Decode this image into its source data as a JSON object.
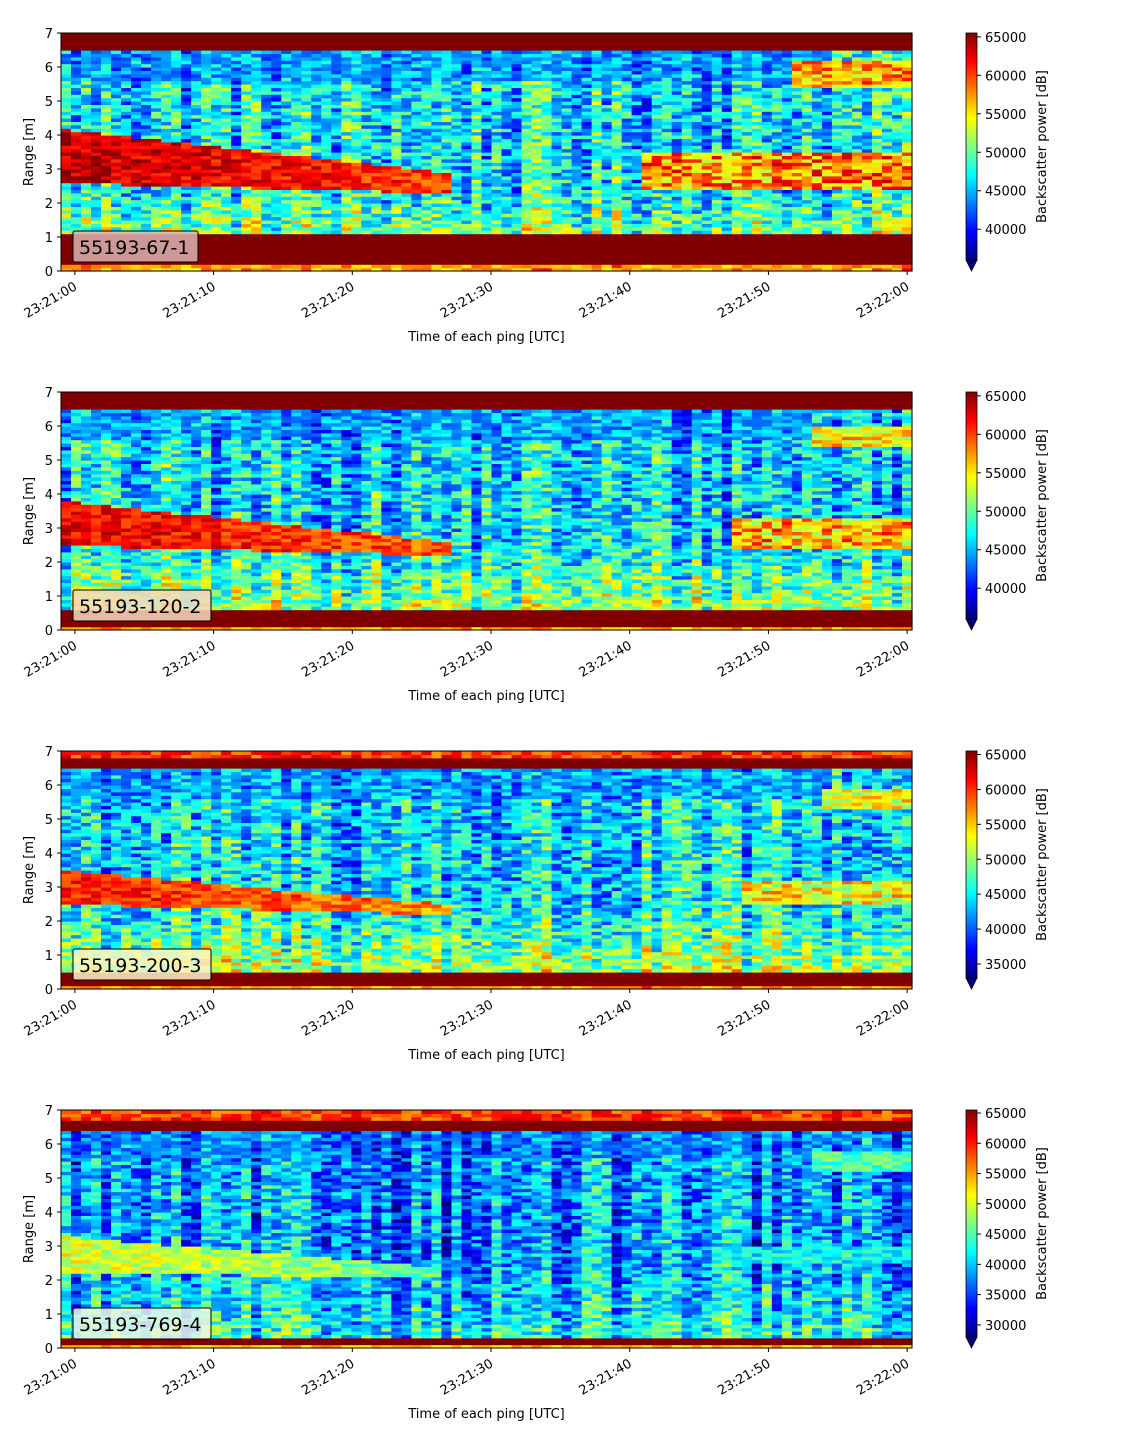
{
  "chart_data": [
    {
      "type": "heatmap",
      "panel_label": "55193-67-1",
      "xlabel": "Time of each ping [UTC]",
      "ylabel": "Range [m]",
      "colorbar_label": "Backscatter power [dB]",
      "colormap": "jet",
      "xlim": [
        "23:21:00",
        "23:22:00"
      ],
      "ylim": [
        0,
        7
      ],
      "x_ticks": [
        "23:21:00",
        "23:21:10",
        "23:21:20",
        "23:21:30",
        "23:21:40",
        "23:21:50",
        "23:22:00"
      ],
      "y_ticks": [
        0,
        1,
        2,
        3,
        4,
        5,
        6,
        7
      ],
      "clim": [
        36000,
        65500
      ],
      "colorbar_ticks": [
        40000,
        45000,
        50000,
        55000,
        60000,
        65000
      ],
      "colorbar_extend": "min",
      "label_box_color": "#dcb3b3",
      "features": {
        "bottom_band_range": [
          0.2,
          1.15
        ],
        "top_band_range": [
          6.55,
          7.0
        ],
        "dense_layer": {
          "start_range": [
            2.6,
            4.2
          ],
          "end_range": [
            2.3,
            2.9
          ],
          "ends_at": "23:21:27",
          "intensity": 0.94
        },
        "late_layer": {
          "starts_at": "23:21:41",
          "range": [
            2.4,
            3.5
          ],
          "intensity": 0.85
        },
        "surface_layer": {
          "starts_at": "23:21:52",
          "range": [
            5.4,
            6.2
          ],
          "intensity": 0.8
        }
      }
    },
    {
      "type": "heatmap",
      "panel_label": "55193-120-2",
      "xlabel": "Time of each ping [UTC]",
      "ylabel": "Range [m]",
      "colorbar_label": "Backscatter power [dB]",
      "colormap": "jet",
      "xlim": [
        "23:21:00",
        "23:22:00"
      ],
      "ylim": [
        0,
        7
      ],
      "x_ticks": [
        "23:21:00",
        "23:21:10",
        "23:21:20",
        "23:21:30",
        "23:21:40",
        "23:21:50",
        "23:22:00"
      ],
      "y_ticks": [
        0,
        1,
        2,
        3,
        4,
        5,
        6,
        7
      ],
      "clim": [
        36000,
        65500
      ],
      "colorbar_ticks": [
        40000,
        45000,
        50000,
        55000,
        60000,
        65000
      ],
      "colorbar_extend": "min",
      "label_box_color": "#f7d9be",
      "features": {
        "bottom_band_range": [
          0.1,
          0.55
        ],
        "top_band_range": [
          6.5,
          6.95
        ],
        "dense_layer": {
          "start_range": [
            2.5,
            3.8
          ],
          "end_range": [
            2.2,
            2.6
          ],
          "ends_at": "23:21:27",
          "intensity": 0.9
        },
        "late_layer": {
          "starts_at": "23:21:47",
          "range": [
            2.4,
            3.3
          ],
          "intensity": 0.8
        },
        "surface_layer": {
          "starts_at": "23:21:53",
          "range": [
            5.4,
            6.0
          ],
          "intensity": 0.72
        }
      }
    },
    {
      "type": "heatmap",
      "panel_label": "55193-200-3",
      "xlabel": "Time of each ping [UTC]",
      "ylabel": "Range [m]",
      "colorbar_label": "Backscatter power [dB]",
      "colormap": "jet",
      "xlim": [
        "23:21:00",
        "23:22:00"
      ],
      "ylim": [
        0,
        7
      ],
      "x_ticks": [
        "23:21:00",
        "23:21:10",
        "23:21:20",
        "23:21:30",
        "23:21:40",
        "23:21:50",
        "23:22:00"
      ],
      "y_ticks": [
        0,
        1,
        2,
        3,
        4,
        5,
        6,
        7
      ],
      "clim": [
        33000,
        65500
      ],
      "colorbar_ticks": [
        35000,
        40000,
        45000,
        50000,
        55000,
        60000,
        65000
      ],
      "colorbar_extend": "min",
      "label_box_color": "#fbf4c6",
      "features": {
        "bottom_band_range": [
          0.15,
          0.5
        ],
        "top_band_range": [
          6.5,
          6.8
        ],
        "dense_layer": {
          "start_range": [
            2.5,
            3.5
          ],
          "end_range": [
            2.2,
            2.5
          ],
          "ends_at": "23:21:27",
          "intensity": 0.86
        },
        "late_layer": {
          "starts_at": "23:21:48",
          "range": [
            2.5,
            3.2
          ],
          "intensity": 0.72
        },
        "surface_layer": {
          "starts_at": "23:21:54",
          "range": [
            5.3,
            5.9
          ],
          "intensity": 0.68
        }
      }
    },
    {
      "type": "heatmap",
      "panel_label": "55193-769-4",
      "xlabel": "Time of each ping [UTC]",
      "ylabel": "Range [m]",
      "colorbar_label": "Backscatter power [dB]",
      "colormap": "jet",
      "xlim": [
        "23:21:00",
        "23:22:00"
      ],
      "ylim": [
        0,
        7
      ],
      "x_ticks": [
        "23:21:00",
        "23:21:10",
        "23:21:20",
        "23:21:30",
        "23:21:40",
        "23:21:50",
        "23:22:00"
      ],
      "y_ticks": [
        0,
        1,
        2,
        3,
        4,
        5,
        6,
        7
      ],
      "clim": [
        28000,
        65500
      ],
      "colorbar_ticks": [
        30000,
        35000,
        40000,
        45000,
        50000,
        55000,
        60000,
        65000
      ],
      "colorbar_extend": "min",
      "label_box_color": "#ecf7e4",
      "features": {
        "bottom_band_range": [
          0.15,
          0.35
        ],
        "top_band_range": [
          6.45,
          6.65
        ],
        "dense_layer": {
          "start_range": [
            2.2,
            3.3
          ],
          "end_range": [
            2.1,
            2.4
          ],
          "ends_at": "23:21:26",
          "intensity": 0.6
        },
        "late_layer": {
          "starts_at": "23:21:46",
          "range": [
            2.5,
            3.0
          ],
          "intensity": 0.42
        },
        "surface_layer": {
          "starts_at": "23:21:53",
          "range": [
            5.2,
            5.8
          ],
          "intensity": 0.5
        }
      }
    }
  ]
}
